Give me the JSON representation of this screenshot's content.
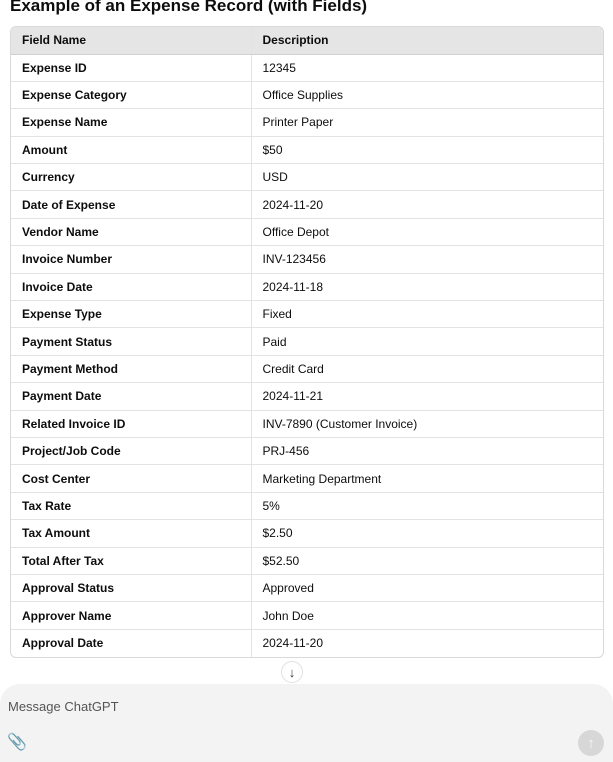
{
  "title": "Example of an Expense Record (with Fields)",
  "table": {
    "headers": [
      "Field Name",
      "Description"
    ],
    "rows": [
      [
        "Expense ID",
        "12345"
      ],
      [
        "Expense Category",
        "Office Supplies"
      ],
      [
        "Expense Name",
        "Printer Paper"
      ],
      [
        "Amount",
        "$50"
      ],
      [
        "Currency",
        "USD"
      ],
      [
        "Date of Expense",
        "2024-11-20"
      ],
      [
        "Vendor Name",
        "Office Depot"
      ],
      [
        "Invoice Number",
        "INV-123456"
      ],
      [
        "Invoice Date",
        "2024-11-18"
      ],
      [
        "Expense Type",
        "Fixed"
      ],
      [
        "Payment Status",
        "Paid"
      ],
      [
        "Payment Method",
        "Credit Card"
      ],
      [
        "Payment Date",
        "2024-11-21"
      ],
      [
        "Related Invoice ID",
        "INV-7890 (Customer Invoice)"
      ],
      [
        "Project/Job Code",
        "PRJ-456"
      ],
      [
        "Cost Center",
        "Marketing Department"
      ],
      [
        "Tax Rate",
        "5%"
      ],
      [
        "Tax Amount",
        "$2.50"
      ],
      [
        "Total After Tax",
        "$52.50"
      ],
      [
        "Approval Status",
        "Approved"
      ],
      [
        "Approver Name",
        "John Doe"
      ],
      [
        "Approval Date",
        "2024-11-20"
      ]
    ]
  },
  "composer": {
    "placeholder": "Message ChatGPT",
    "attach_icon": "paperclip-icon",
    "send_icon": "arrow-up-icon"
  },
  "scroll_icon": "arrow-down-icon"
}
